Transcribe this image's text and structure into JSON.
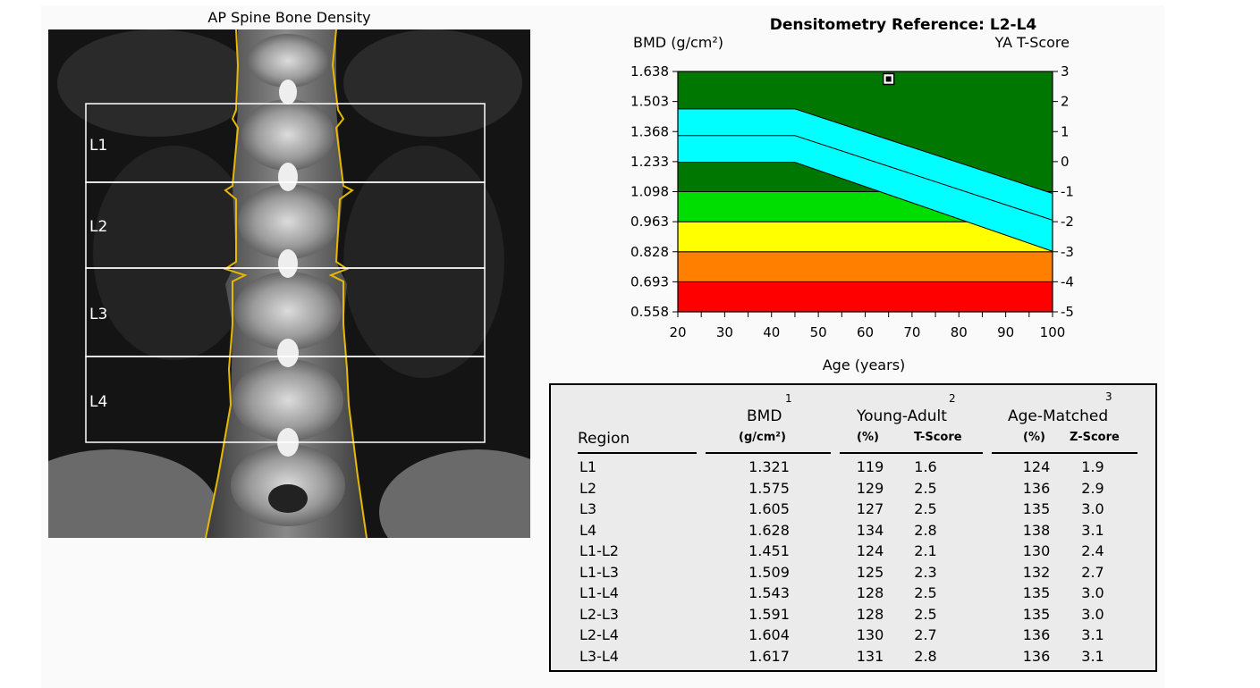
{
  "scan": {
    "title": "AP Spine Bone Density",
    "regions": [
      "L1",
      "L2",
      "L3",
      "L4"
    ]
  },
  "chart_data": {
    "type": "area",
    "title": "Densitometry Reference: L2-L4",
    "ylabel": "BMD (g/cm²)",
    "y2label": "YA T-Score",
    "xlabel": "Age (years)",
    "x_ticks": [
      20,
      30,
      40,
      50,
      60,
      70,
      80,
      90,
      100
    ],
    "y_ticks": [
      "1.638",
      "1.503",
      "1.368",
      "1.233",
      "1.098",
      "0.963",
      "0.828",
      "0.693",
      "0.558"
    ],
    "y2_ticks": [
      "3",
      "2",
      "1",
      "0",
      "-1",
      "-2",
      "-3",
      "-4",
      "-5"
    ],
    "xlim": [
      20,
      100
    ],
    "ylim": [
      0.558,
      1.638
    ],
    "bands": [
      {
        "from": 0.558,
        "to": 0.693,
        "color": "#ff0000"
      },
      {
        "from": 0.693,
        "to": 0.828,
        "color": "#ff8000"
      },
      {
        "from": 0.828,
        "to": 0.963,
        "color": "#ffff00"
      },
      {
        "from": 0.963,
        "to": 1.098,
        "color": "#00dd00"
      },
      {
        "from": 1.098,
        "to": 1.638,
        "color": "#007700"
      }
    ],
    "reference_curve": {
      "color": "#00ffff",
      "mean": [
        [
          20,
          1.35
        ],
        [
          45,
          1.35
        ],
        [
          100,
          0.97
        ]
      ],
      "upper": [
        [
          20,
          1.47
        ],
        [
          45,
          1.47
        ],
        [
          100,
          1.09
        ]
      ],
      "lower": [
        [
          20,
          1.23
        ],
        [
          45,
          1.23
        ],
        [
          100,
          0.83
        ]
      ]
    },
    "patient_point": {
      "x": 65,
      "y": 1.604
    }
  },
  "results": {
    "headers": {
      "region": "Region",
      "bmd": "BMD",
      "bmd_unit": "(g/cm²)",
      "young_adult": "Young-Adult",
      "age_matched": "Age-Matched",
      "pct": "(%)",
      "tscore": "T-Score",
      "zscore": "Z-Score",
      "fn1": "1",
      "fn2": "2",
      "fn3": "3"
    },
    "rows": [
      [
        "L1",
        "1.321",
        "119",
        "1.6",
        "124",
        "1.9"
      ],
      [
        "L2",
        "1.575",
        "129",
        "2.5",
        "136",
        "2.9"
      ],
      [
        "L3",
        "1.605",
        "127",
        "2.5",
        "135",
        "3.0"
      ],
      [
        "L4",
        "1.628",
        "134",
        "2.8",
        "138",
        "3.1"
      ],
      [
        "L1-L2",
        "1.451",
        "124",
        "2.1",
        "130",
        "2.4"
      ],
      [
        "L1-L3",
        "1.509",
        "125",
        "2.3",
        "132",
        "2.7"
      ],
      [
        "L1-L4",
        "1.543",
        "128",
        "2.5",
        "135",
        "3.0"
      ],
      [
        "L2-L3",
        "1.591",
        "128",
        "2.5",
        "135",
        "3.0"
      ],
      [
        "L2-L4",
        "1.604",
        "130",
        "2.7",
        "136",
        "3.1"
      ],
      [
        "L3-L4",
        "1.617",
        "131",
        "2.8",
        "136",
        "3.1"
      ]
    ]
  }
}
